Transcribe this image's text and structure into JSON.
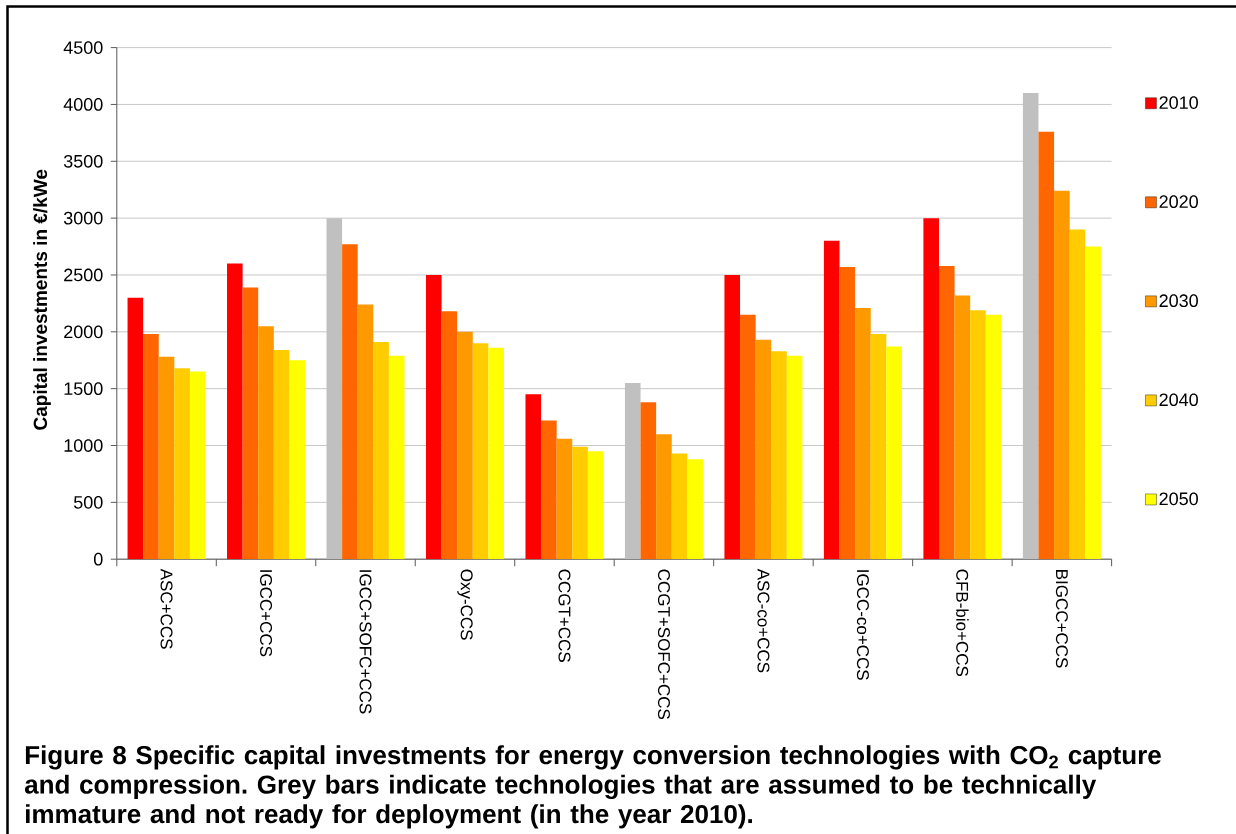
{
  "chart_data": {
    "type": "bar",
    "ylabel": "Capital investments in €/kWe",
    "annotations": [
      "Figure 8 Specific capital investments for energy conversion technologies with CO$_{2}$ capture and compression. Grey bars indicate technologies that are assumed to be technically immature and not ready for deployment (in the year 2010)."
    ],
    "categories": [
      "ASC+CCS",
      "IGCC+CCS",
      "IGCC+SOFC+CCS",
      "Oxy-CCS",
      "CCGT+CCS",
      "CCGT+SOFC+CCS",
      "ASC-co+CCS",
      "IGCC-co+CCS",
      "CFB-bio+CCS",
      "BIGCC+CCS"
    ],
    "series": [
      {
        "name": "2010",
        "color": "#ff0000",
        "colors": [
          "#ff0000",
          "#ff0000",
          "#c0c0c0",
          "#ff0000",
          "#ff0000",
          "#c0c0c0",
          "#ff0000",
          "#ff0000",
          "#ff0000",
          "#c0c0c0"
        ],
        "values": [
          2300,
          2600,
          3000,
          2500,
          1450,
          1550,
          2500,
          2800,
          3000,
          4100
        ]
      },
      {
        "name": "2020",
        "color": "#ff6600",
        "values": [
          1980,
          2390,
          2770,
          2180,
          1220,
          1380,
          2150,
          2570,
          2580,
          3760
        ]
      },
      {
        "name": "2030",
        "color": "#ff9900",
        "values": [
          1780,
          2050,
          2240,
          2000,
          1060,
          1100,
          1930,
          2210,
          2320,
          3240
        ]
      },
      {
        "name": "2040",
        "color": "#ffcc00",
        "values": [
          1680,
          1840,
          1910,
          1900,
          990,
          930,
          1830,
          1980,
          2190,
          2900
        ]
      },
      {
        "name": "2050",
        "color": "#ffff00",
        "values": [
          1650,
          1750,
          1790,
          1860,
          950,
          880,
          1790,
          1870,
          2150,
          2750
        ]
      }
    ],
    "ylim": [
      0,
      4500
    ],
    "yticks": [
      0,
      500,
      1000,
      1500,
      2000,
      2500,
      3000,
      3500,
      4000,
      4500
    ],
    "grid": "y",
    "legend": "right"
  }
}
